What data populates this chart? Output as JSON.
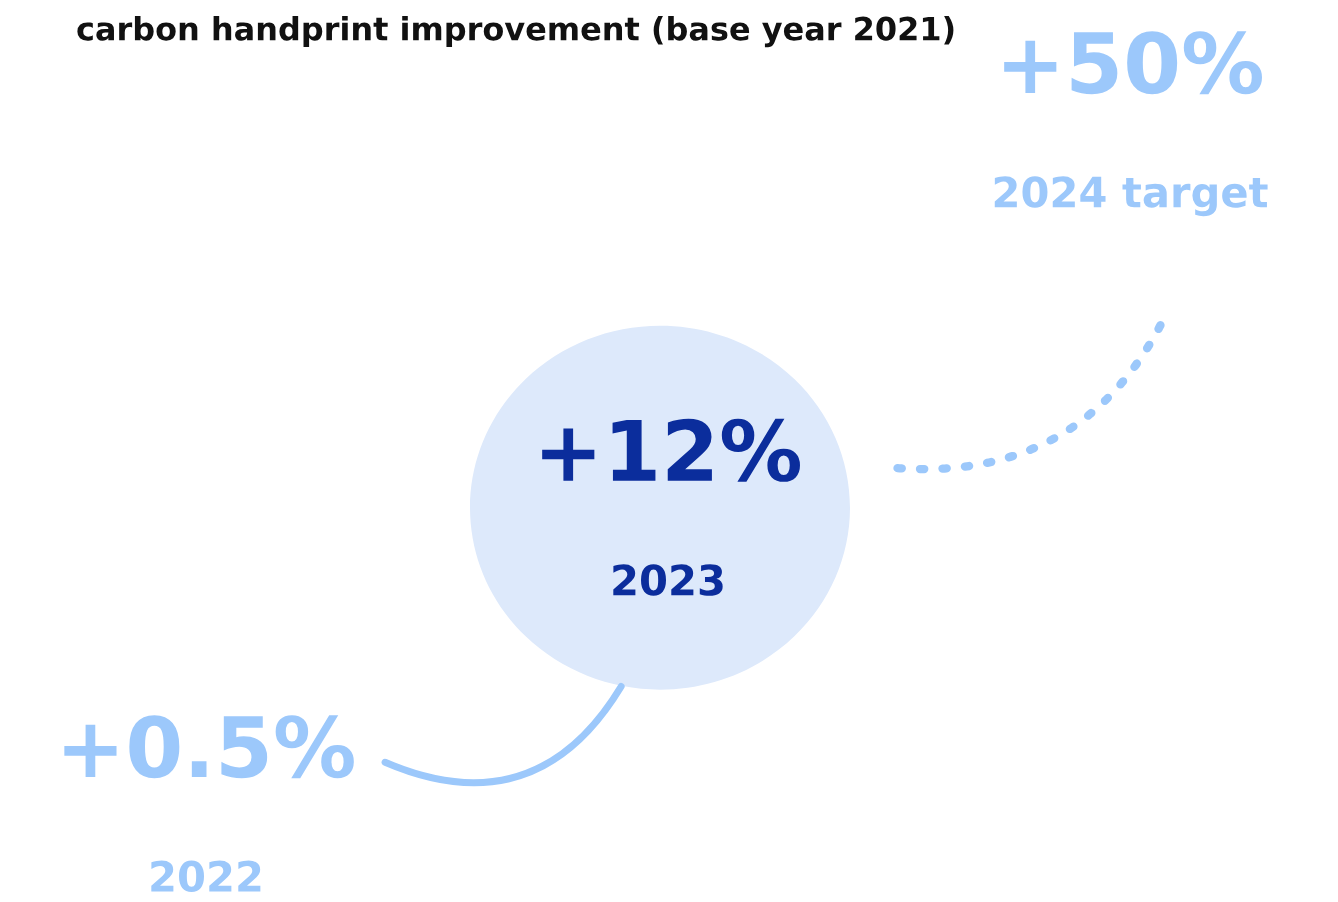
{
  "chart_data": {
    "type": "other",
    "title": "carbon handprint improvement (base year 2021)",
    "categories": [
      "2022",
      "2023",
      "2024 target"
    ],
    "values": [
      0.5,
      12,
      50
    ],
    "value_labels": [
      "+0.5%",
      "+12%",
      "+50%"
    ],
    "colors": [
      "#9cc8fb",
      "#dde9fb",
      "#9cc8fb"
    ]
  }
}
